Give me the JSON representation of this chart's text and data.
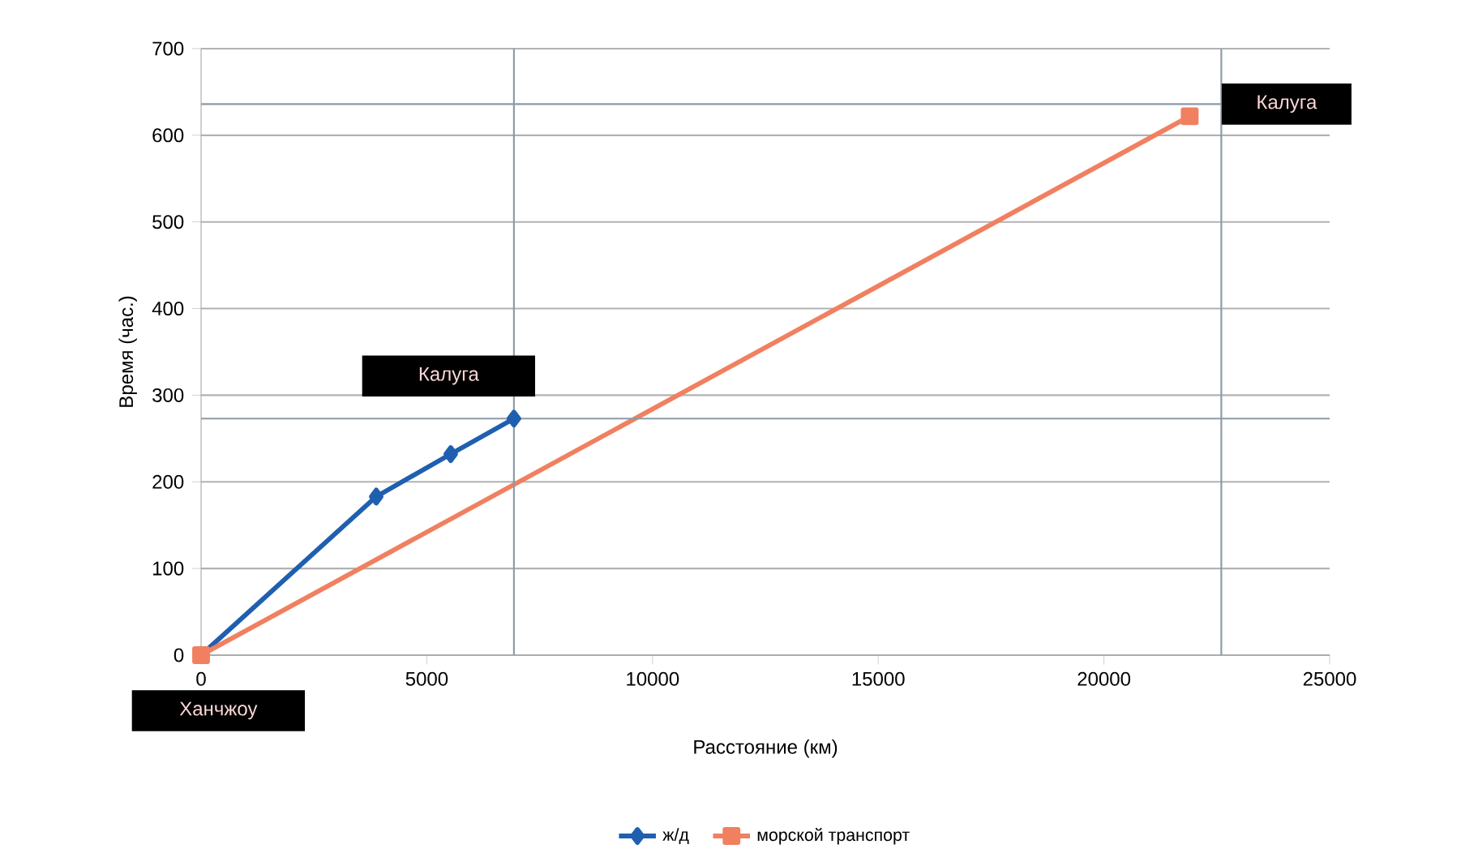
{
  "chart_data": {
    "type": "line",
    "xlabel": "Расстояние (км)",
    "ylabel": "Время (час.)",
    "xlim": [
      0,
      25000
    ],
    "xticks": [
      0,
      5000,
      10000,
      15000,
      20000,
      25000
    ],
    "ylim": [
      0,
      700
    ],
    "yticks": [
      0,
      100,
      200,
      300,
      400,
      500,
      600,
      700
    ],
    "grid": "y",
    "legend": "bottom",
    "series": [
      {
        "name": "ж/д",
        "color": "#1f5fb0",
        "marker": "diamond",
        "x": [
          0,
          3880,
          5530,
          6930
        ],
        "values": [
          0,
          183,
          232,
          273
        ]
      },
      {
        "name": "морской транспорт",
        "color": "#f08060",
        "marker": "square",
        "x": [
          0,
          21900
        ],
        "values": [
          0,
          622
        ]
      }
    ],
    "ref_lines": [
      {
        "axis": "x",
        "value": 6930,
        "color": "#8a9aa8"
      },
      {
        "axis": "y",
        "value": 273,
        "color": "#8a9aa8"
      },
      {
        "axis": "x",
        "value": 22600,
        "color": "#8a9aa8"
      },
      {
        "axis": "y",
        "value": 636,
        "color": "#8a9aa8"
      }
    ],
    "annotations": [
      {
        "text": "Калуга",
        "x": 6930,
        "y": 273
      },
      {
        "text": "Калуга",
        "x": 22600,
        "y": 636
      },
      {
        "text": "Ханчжоу",
        "x": 0,
        "y": 0
      }
    ]
  }
}
